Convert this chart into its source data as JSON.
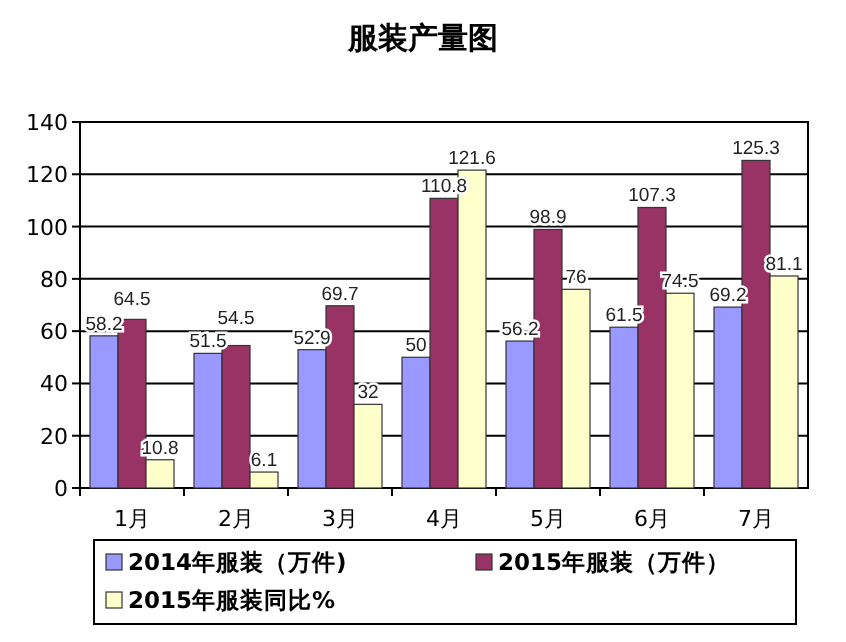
{
  "chart_data": {
    "type": "bar",
    "title": "服装产量图",
    "categories": [
      "1月",
      "2月",
      "3月",
      "4月",
      "5月",
      "6月",
      "7月"
    ],
    "series": [
      {
        "name": "2014年服装（万件)",
        "color": "#9999ff",
        "values": [
          58.2,
          51.5,
          52.9,
          50,
          56.2,
          61.5,
          69.2
        ]
      },
      {
        "name": "2015年服装（万件）",
        "color": "#993366",
        "values": [
          64.5,
          54.5,
          69.7,
          110.8,
          98.9,
          107.3,
          125.3
        ]
      },
      {
        "name": "2015年服装同比%",
        "color": "#ffffcc",
        "values": [
          10.8,
          6.1,
          32,
          121.6,
          76,
          74.5,
          81.1
        ]
      }
    ],
    "ylim": [
      0,
      140
    ],
    "yticks": [
      0,
      20,
      40,
      60,
      80,
      100,
      120,
      140
    ],
    "grid": "y",
    "legend": "bottom",
    "data_labels": true
  }
}
